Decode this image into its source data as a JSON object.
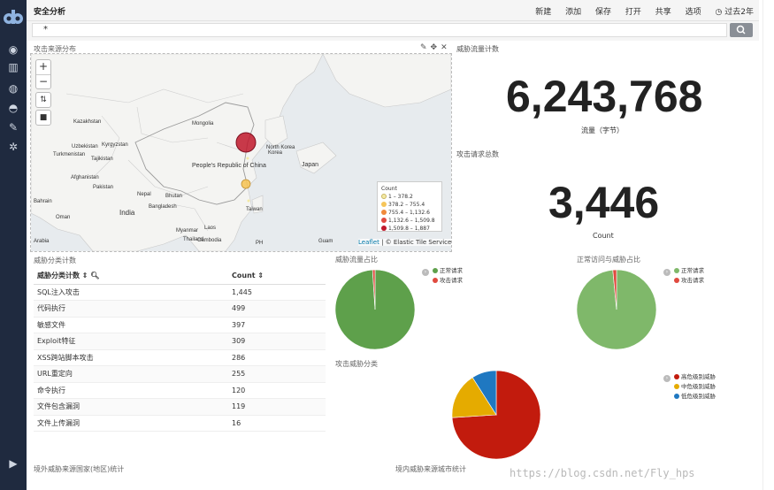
{
  "app": {
    "title": "安全分析",
    "menu": [
      "新建",
      "添加",
      "保存",
      "打开",
      "共享",
      "选项",
      "过去2年"
    ],
    "search_value": "*"
  },
  "map_panel": {
    "title": "攻击来源分布",
    "labels": [
      "Kazakhstan",
      "Mongolia",
      "Uzbekistan",
      "Kyrgyzstan",
      "Turkmenistan",
      "Tajikistan",
      "Afghanistan",
      "Pakistan",
      "Nepal",
      "Bhutan",
      "India",
      "Bangladesh",
      "Bahrain",
      "Oman",
      "People's Republic of China",
      "North Korea",
      "Korea",
      "Japan",
      "Taiwan",
      "Myanmar",
      "Laos",
      "Thailand",
      "Cambodia",
      "PH",
      "Guam",
      "Arabia"
    ],
    "legend": {
      "title": "Count",
      "items": [
        {
          "label": "1 – 378.2",
          "color": "#f3e9a4"
        },
        {
          "label": "378.2 – 755.4",
          "color": "#f6c55a"
        },
        {
          "label": "755.4 – 1,132.6",
          "color": "#f08a3b"
        },
        {
          "label": "1,132.6 – 1,509.8",
          "color": "#e04a3f"
        },
        {
          "label": "1,509.8 – 1,887",
          "color": "#c0182b"
        }
      ]
    },
    "attribution_leaflet": "Leaflet",
    "attribution_rest": "| © Elastic Tile Service",
    "points": [
      {
        "count": 1887,
        "color": "#c0182b"
      },
      {
        "count": 500,
        "color": "#f6c55a"
      }
    ]
  },
  "metrics": {
    "traffic_title": "威胁流量计数",
    "traffic_value": "6,243,768",
    "traffic_unit": "流量（字节）",
    "requests_title": "攻击请求总数",
    "requests_value": "3,446",
    "requests_unit": "Count"
  },
  "table": {
    "title": "威胁分类计数",
    "col1": "威胁分类计数 ⇕",
    "col2": "Count ⇕",
    "rows": [
      {
        "name": "SQL注入攻击",
        "count": "1,445"
      },
      {
        "name": "代码执行",
        "count": "499"
      },
      {
        "name": "敏感文件",
        "count": "397"
      },
      {
        "name": "Exploit特征",
        "count": "309"
      },
      {
        "name": "XSS跨站脚本攻击",
        "count": "286"
      },
      {
        "name": "URL重定向",
        "count": "255"
      },
      {
        "name": "命令执行",
        "count": "120"
      },
      {
        "name": "文件包含漏洞",
        "count": "119"
      },
      {
        "name": "文件上传漏洞",
        "count": "16"
      }
    ]
  },
  "pies": {
    "traffic_share": {
      "title": "威胁流量占比",
      "legend": [
        {
          "label": "正常请求",
          "color": "#5ea04b"
        },
        {
          "label": "攻击请求",
          "color": "#e04a3f"
        }
      ],
      "fractions": [
        0.99,
        0.01
      ]
    },
    "access_share": {
      "title": "正常访问与威胁占比",
      "legend": [
        {
          "label": "正常请求",
          "color": "#7fb86a"
        },
        {
          "label": "攻击请求",
          "color": "#e04a3f"
        }
      ],
      "fractions": [
        0.985,
        0.015
      ]
    },
    "category": {
      "title": "攻击威胁分类",
      "legend": [
        {
          "label": "高危级别威胁",
          "color": "#c21b0d"
        },
        {
          "label": "中危级别威胁",
          "color": "#e5ab00"
        },
        {
          "label": "低危级别威胁",
          "color": "#1f78c1"
        }
      ],
      "fractions": [
        0.74,
        0.17,
        0.09
      ]
    }
  },
  "bottom": {
    "left": "境外威胁来源国家(地区)统计",
    "right": "境内威胁来源城市统计"
  },
  "watermark": "https://blog.csdn.net/Fly_hps"
}
